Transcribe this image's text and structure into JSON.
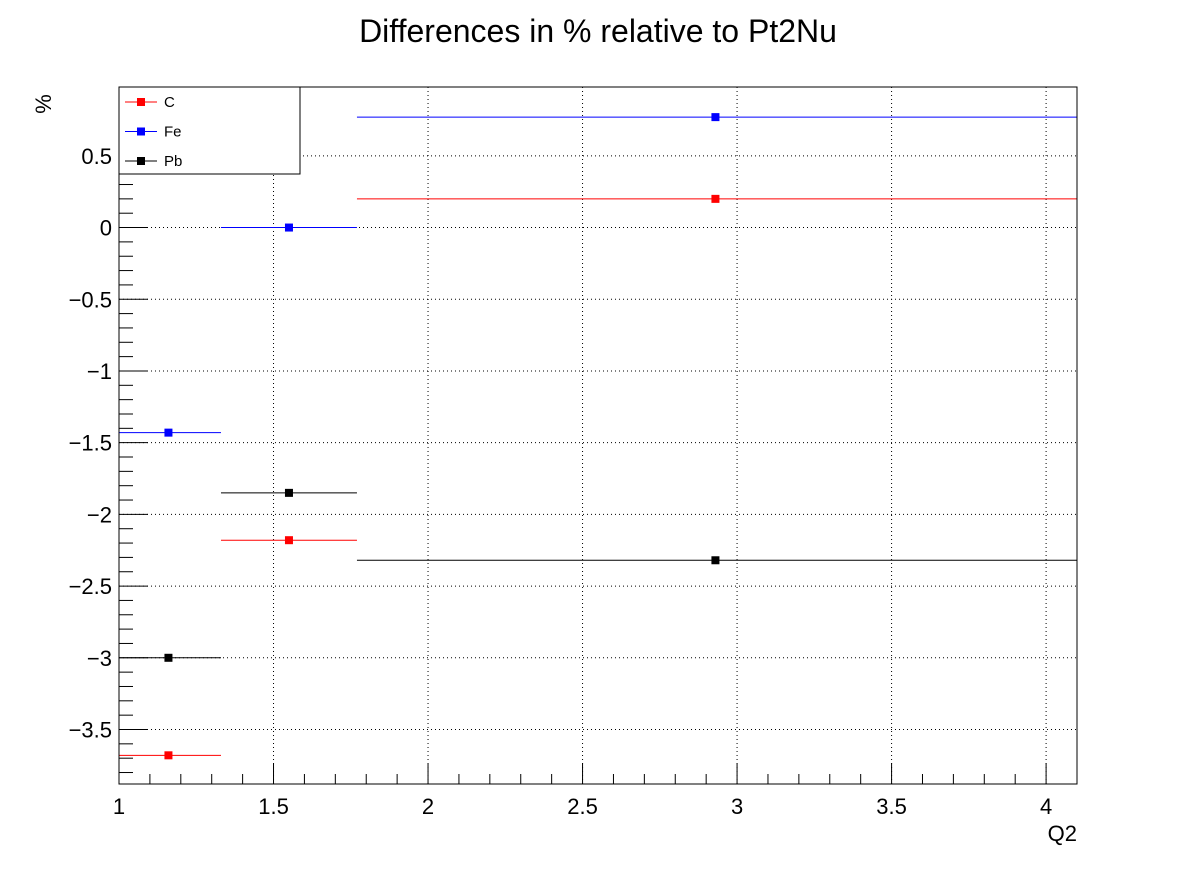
{
  "chart_data": {
    "type": "scatter",
    "title": "Differences in % relative to Pt2Nu",
    "xlabel": "Q2",
    "ylabel": "%",
    "xlim": [
      1,
      4.1
    ],
    "ylim": [
      -3.88,
      0.98
    ],
    "xticks": [
      1,
      1.5,
      2,
      2.5,
      3,
      3.5,
      4
    ],
    "xtick_labels": [
      "1",
      "1.5",
      "2",
      "2.5",
      "3",
      "3.5",
      "4"
    ],
    "yticks": [
      0.5,
      0,
      -0.5,
      -1,
      -1.5,
      -2,
      -2.5,
      -3,
      -3.5
    ],
    "ytick_labels": [
      "0.5",
      "0",
      "−0.5",
      "−1",
      "−1.5",
      "−2",
      "−2.5",
      "−3",
      "−3.5"
    ],
    "grid": true,
    "legend_position": "top-left",
    "bins": [
      [
        1.0,
        1.33
      ],
      [
        1.33,
        1.77
      ],
      [
        1.77,
        4.1
      ]
    ],
    "x": [
      1.16,
      1.55,
      2.93
    ],
    "series": [
      {
        "name": "C",
        "color": "#ff0000",
        "values": [
          -3.68,
          -2.18,
          0.2
        ]
      },
      {
        "name": "Fe",
        "color": "#0000ff",
        "values": [
          -1.43,
          0.0,
          0.77
        ]
      },
      {
        "name": "Pb",
        "color": "#000000",
        "values": [
          -3.0,
          -1.85,
          -2.32
        ]
      }
    ]
  }
}
